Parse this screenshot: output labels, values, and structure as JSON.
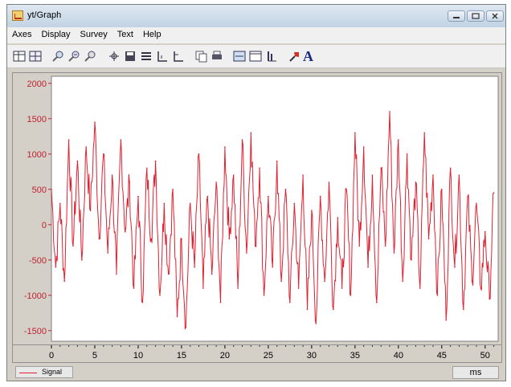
{
  "window": {
    "title": "yt/Graph"
  },
  "menu": [
    "Axes",
    "Display",
    "Survey",
    "Text",
    "Help"
  ],
  "toolbar_icons": [
    "table-icon",
    "grid-icon",
    "zoom-in-icon",
    "zoom-x-icon",
    "zoom-out-icon",
    "crosshair-icon",
    "save-icon",
    "list-icon",
    "axes-icon",
    "axes-alt-icon",
    "copy-icon",
    "print-icon",
    "panel-icon",
    "frame-icon",
    "bar-icon",
    "paint-icon",
    "font-icon"
  ],
  "font_label": "A",
  "chart_data": {
    "type": "line",
    "xlim": [
      0,
      51.5
    ],
    "ylim": [
      -1650,
      2100
    ],
    "xticks": [
      "0",
      "5",
      "10",
      "15",
      "20",
      "25",
      "30",
      "35",
      "40",
      "45",
      "50"
    ],
    "yticks": [
      "2000",
      "1500",
      "1000",
      "500",
      "0",
      "-500",
      "-1000",
      "-1500"
    ],
    "series": [
      {
        "name": "Signal",
        "color": "#e02030",
        "x": [
          0,
          0.5,
          1,
          1.5,
          2,
          2.5,
          3,
          3.5,
          4,
          4.5,
          5,
          5.5,
          6,
          6.5,
          7,
          7.5,
          8,
          8.5,
          9,
          9.5,
          10,
          10.5,
          11,
          11.5,
          12,
          12.5,
          13,
          13.5,
          14,
          14.5,
          15,
          15.5,
          16,
          16.5,
          17,
          17.5,
          18,
          18.5,
          19,
          19.5,
          20,
          20.5,
          21,
          21.5,
          22,
          22.5,
          23,
          23.5,
          24,
          24.5,
          25,
          25.5,
          26,
          26.5,
          27,
          27.5,
          28,
          28.5,
          29,
          29.5,
          30,
          30.5,
          31,
          31.5,
          32,
          32.5,
          33,
          33.5,
          34,
          34.5,
          35,
          35.5,
          36,
          36.5,
          37,
          37.5,
          38,
          38.5,
          39,
          39.5,
          40,
          40.5,
          41,
          41.5,
          42,
          42.5,
          43,
          43.5,
          44,
          44.5,
          45,
          45.5,
          46,
          46.5,
          47,
          47.5,
          48,
          48.5,
          49,
          49.5,
          50,
          50.5,
          51
        ],
        "y": [
          500,
          -600,
          300,
          -800,
          1200,
          -300,
          900,
          -500,
          1100,
          200,
          1450,
          -200,
          1000,
          -400,
          700,
          -700,
          1200,
          -100,
          600,
          -900,
          400,
          -1100,
          800,
          -200,
          900,
          -1000,
          300,
          -700,
          500,
          -1300,
          -200,
          -1450,
          300,
          -600,
          1000,
          -900,
          400,
          -700,
          600,
          -1100,
          1100,
          -200,
          700,
          -900,
          1200,
          -400,
          1300,
          -300,
          800,
          -1000,
          400,
          -600,
          900,
          -800,
          500,
          -1100,
          300,
          -900,
          700,
          -1200,
          200,
          -1400,
          400,
          -800,
          600,
          -1200,
          100,
          -900,
          500,
          -1000,
          1300,
          -300,
          1100,
          -600,
          700,
          -1100,
          800,
          -300,
          1600,
          -400,
          1200,
          -800,
          1000,
          -500,
          600,
          -900,
          1300,
          -200,
          700,
          -1000,
          500,
          -1350,
          800,
          -600,
          700,
          -1200,
          400,
          -800,
          300,
          -900,
          -100,
          -1050,
          450
        ]
      }
    ]
  },
  "status": {
    "legend_label": "Signal",
    "units": "ms"
  }
}
